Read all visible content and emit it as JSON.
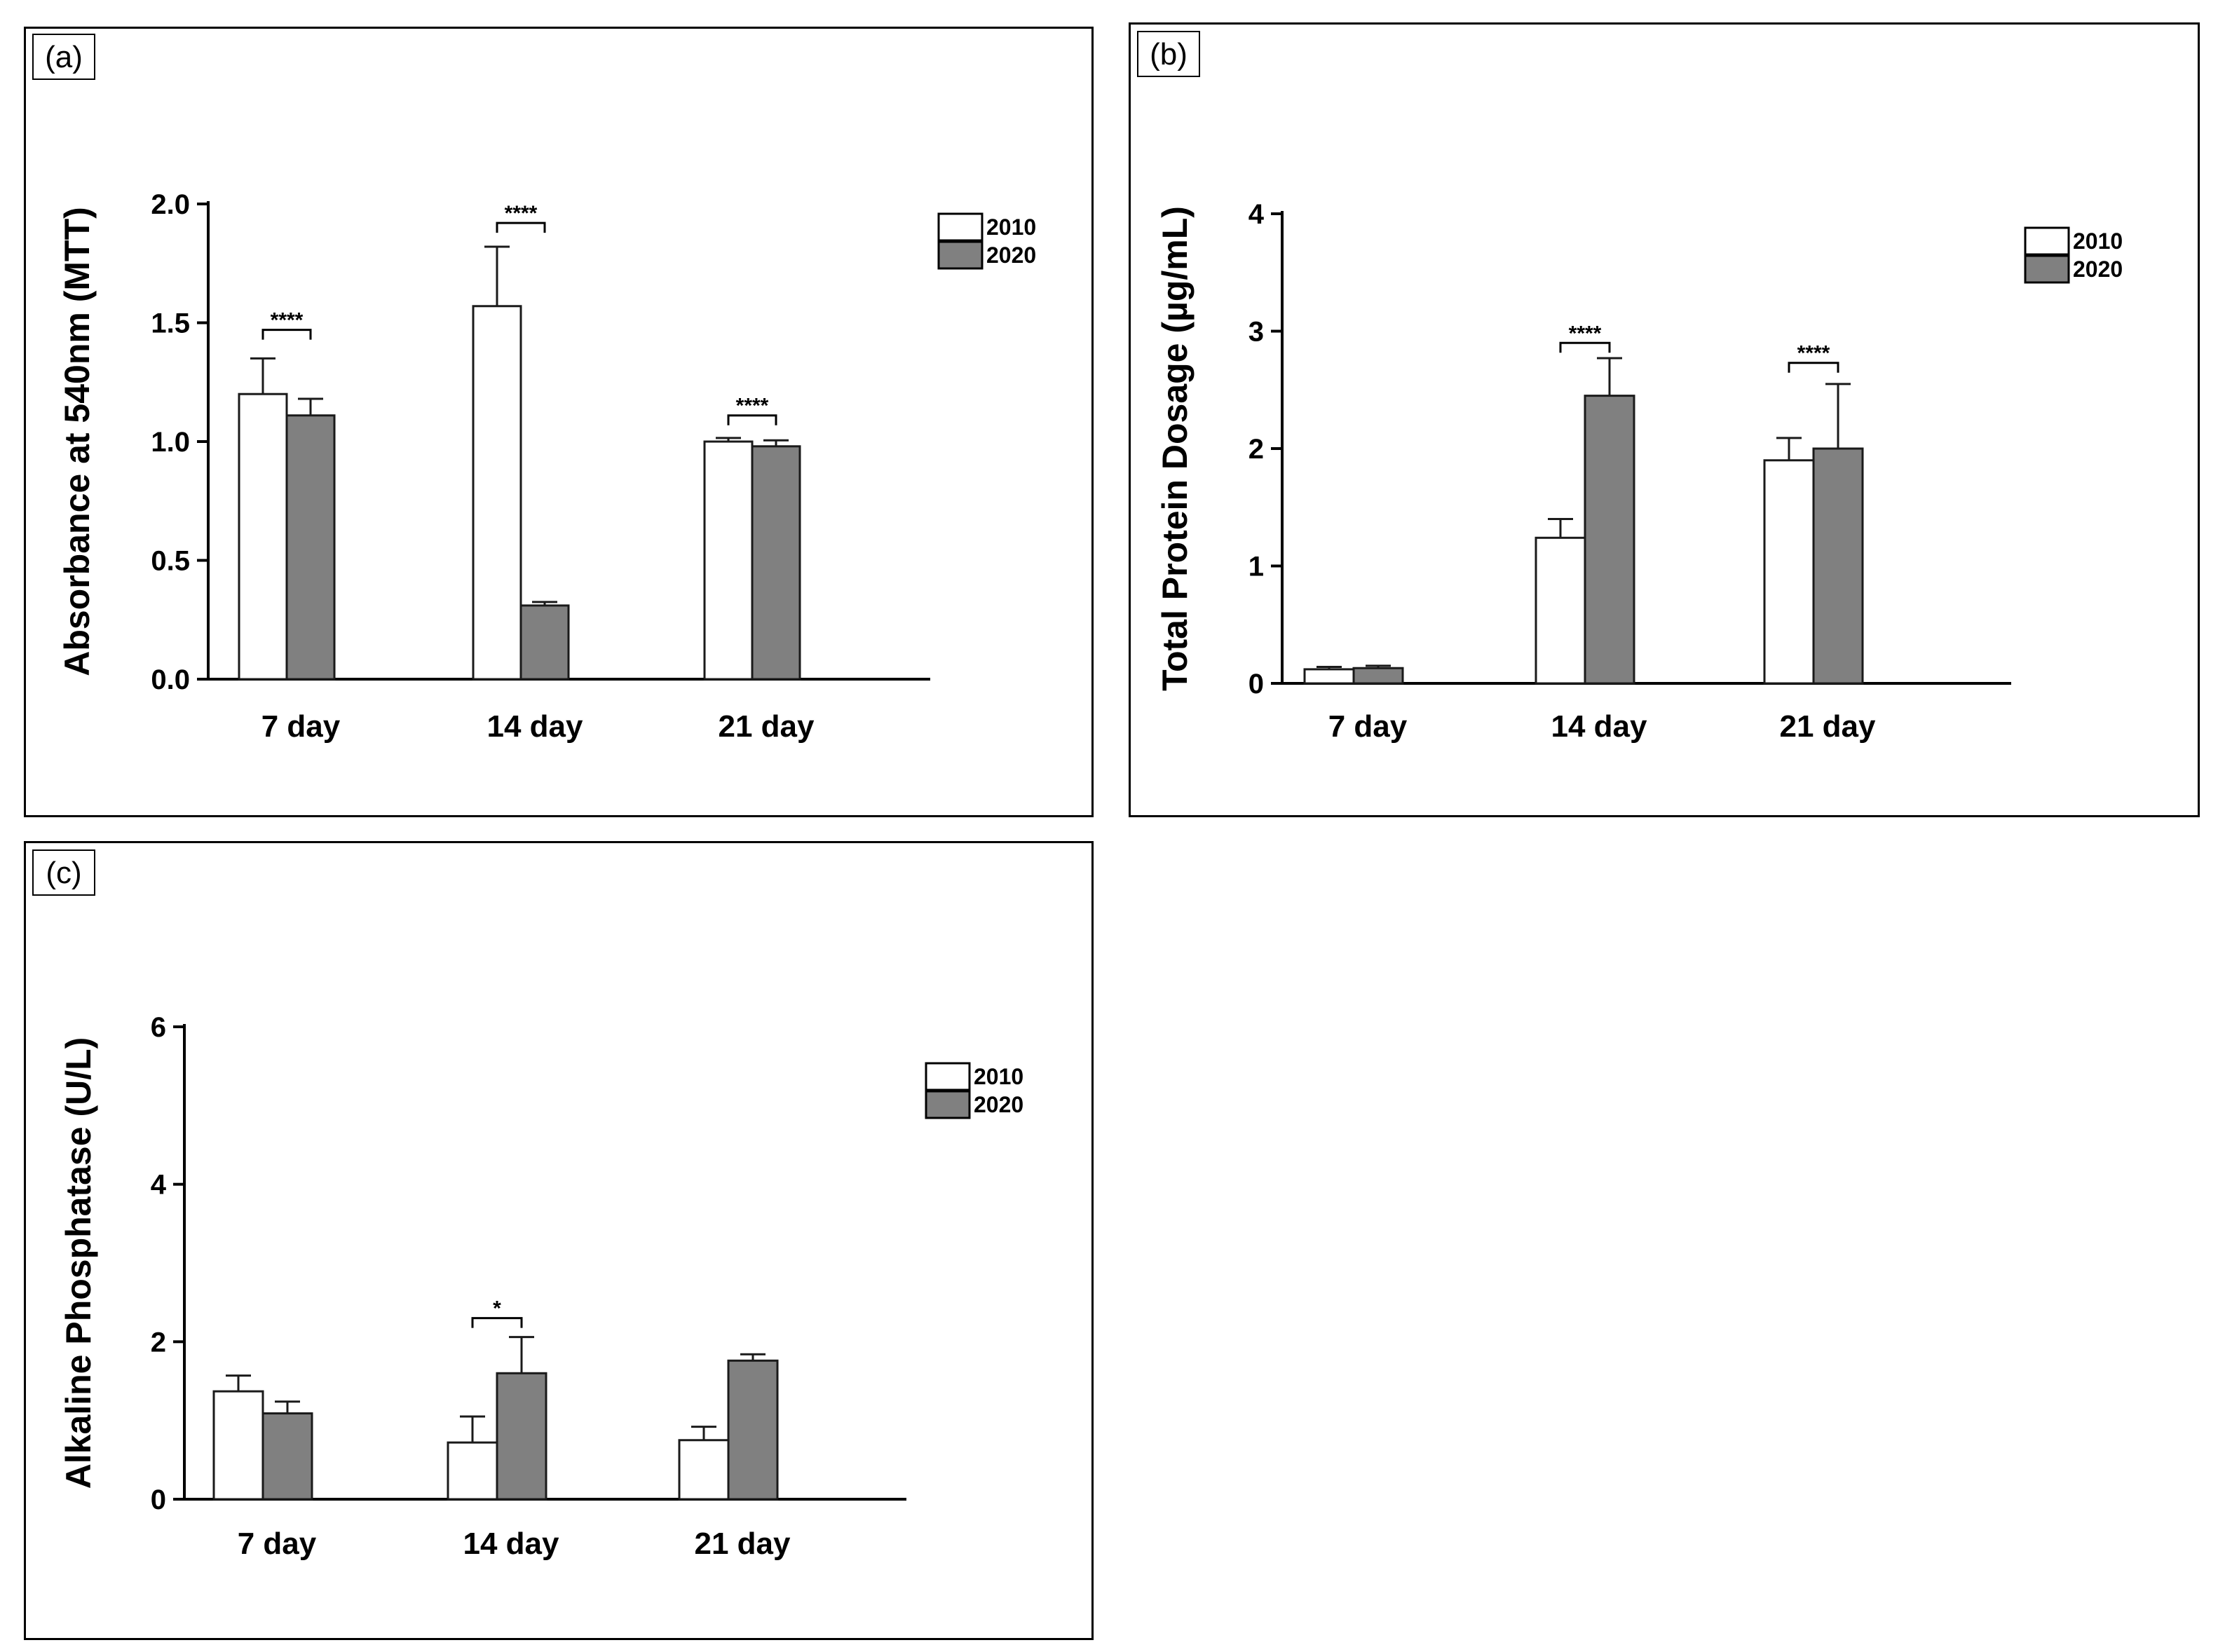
{
  "colors": {
    "series_2010": "#ffffff",
    "series_2020": "#808080",
    "stroke": "#1a1a1a"
  },
  "chart_data": [
    {
      "id": "a",
      "type": "bar",
      "panel_label": "(a)",
      "ylabel": "Absorbance at 540nm (MTT)",
      "ylim": [
        0,
        2.0
      ],
      "yticks": [
        0,
        0.5,
        1.0,
        1.5,
        2.0
      ],
      "ytick_labels": [
        "0.0",
        "0.5",
        "1.0",
        "1.5",
        "2.0"
      ],
      "categories": [
        "7 day",
        "14 day",
        "21 day"
      ],
      "legend_position": "top-right",
      "series": [
        {
          "name": "2010",
          "values": [
            1.2,
            1.57,
            1.0
          ],
          "errors": [
            0.15,
            0.25,
            0.015
          ]
        },
        {
          "name": "2020",
          "values": [
            1.11,
            0.31,
            0.98
          ],
          "errors": [
            0.07,
            0.015,
            0.025
          ]
        }
      ],
      "significance": [
        {
          "category_index": 0,
          "label": "****",
          "level": 1.47
        },
        {
          "category_index": 1,
          "label": "****",
          "level": 1.92
        },
        {
          "category_index": 2,
          "label": "****",
          "level": 1.11
        }
      ]
    },
    {
      "id": "b",
      "type": "bar",
      "panel_label": "(b)",
      "ylabel": "Total Protein Dosage (µg/mL)",
      "ylim": [
        0,
        4
      ],
      "yticks": [
        0,
        1,
        2,
        3,
        4
      ],
      "ytick_labels": [
        "0",
        "1",
        "2",
        "3",
        "4"
      ],
      "categories": [
        "7 day",
        "14 day",
        "21 day"
      ],
      "legend_position": "top-right",
      "series": [
        {
          "name": "2010",
          "values": [
            0.12,
            1.24,
            1.9
          ],
          "errors": [
            0.02,
            0.16,
            0.19
          ]
        },
        {
          "name": "2020",
          "values": [
            0.13,
            2.45,
            2.0
          ],
          "errors": [
            0.02,
            0.32,
            0.55
          ]
        }
      ],
      "significance": [
        {
          "category_index": 1,
          "label": "****",
          "level": 2.9
        },
        {
          "category_index": 2,
          "label": "****",
          "level": 2.73
        }
      ]
    },
    {
      "id": "c",
      "type": "bar",
      "panel_label": "(c)",
      "ylabel": "Alkaline Phosphatase (U/L)",
      "ylim": [
        0,
        6
      ],
      "yticks": [
        0,
        2,
        4,
        6
      ],
      "ytick_labels": [
        "0",
        "2",
        "4",
        "6"
      ],
      "categories": [
        "7 day",
        "14 day",
        "21 day"
      ],
      "legend_position": "top-right",
      "series": [
        {
          "name": "2010",
          "values": [
            1.37,
            0.72,
            0.75
          ],
          "errors": [
            0.2,
            0.33,
            0.17
          ]
        },
        {
          "name": "2020",
          "values": [
            1.09,
            1.6,
            1.76
          ],
          "errors": [
            0.15,
            0.46,
            0.08
          ]
        }
      ],
      "significance": [
        {
          "category_index": 1,
          "label": "*",
          "level": 2.3
        }
      ]
    }
  ]
}
